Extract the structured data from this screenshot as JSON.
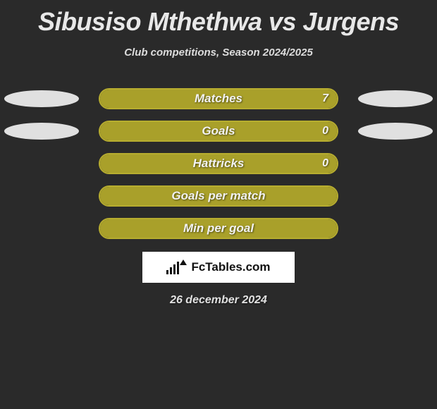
{
  "title": "Sibusiso Mthethwa vs Jurgens",
  "subtitle": "Club competitions, Season 2024/2025",
  "date": "26 december 2024",
  "logo_text": "FcTables.com",
  "background_color": "#2a2a2a",
  "title_color": "#e8e8e8",
  "title_fontsize": 36,
  "subtitle_fontsize": 15,
  "bar_label_fontsize": 17,
  "ellipse_color": "#e0e0e0",
  "fill_color": "#a9a02a",
  "border_color": "#b7ad2f",
  "logo_bg": "#ffffff",
  "logo_fg": "#111111",
  "rows": [
    {
      "label": "Matches",
      "value": "7",
      "fill_pct": 100,
      "show_value": true,
      "left_ellipse": true,
      "right_ellipse": true
    },
    {
      "label": "Goals",
      "value": "0",
      "fill_pct": 100,
      "show_value": true,
      "left_ellipse": true,
      "right_ellipse": true
    },
    {
      "label": "Hattricks",
      "value": "0",
      "fill_pct": 100,
      "show_value": true,
      "left_ellipse": false,
      "right_ellipse": false
    },
    {
      "label": "Goals per match",
      "value": "",
      "fill_pct": 100,
      "show_value": false,
      "left_ellipse": false,
      "right_ellipse": false
    },
    {
      "label": "Min per goal",
      "value": "",
      "fill_pct": 100,
      "show_value": false,
      "left_ellipse": false,
      "right_ellipse": false
    }
  ]
}
